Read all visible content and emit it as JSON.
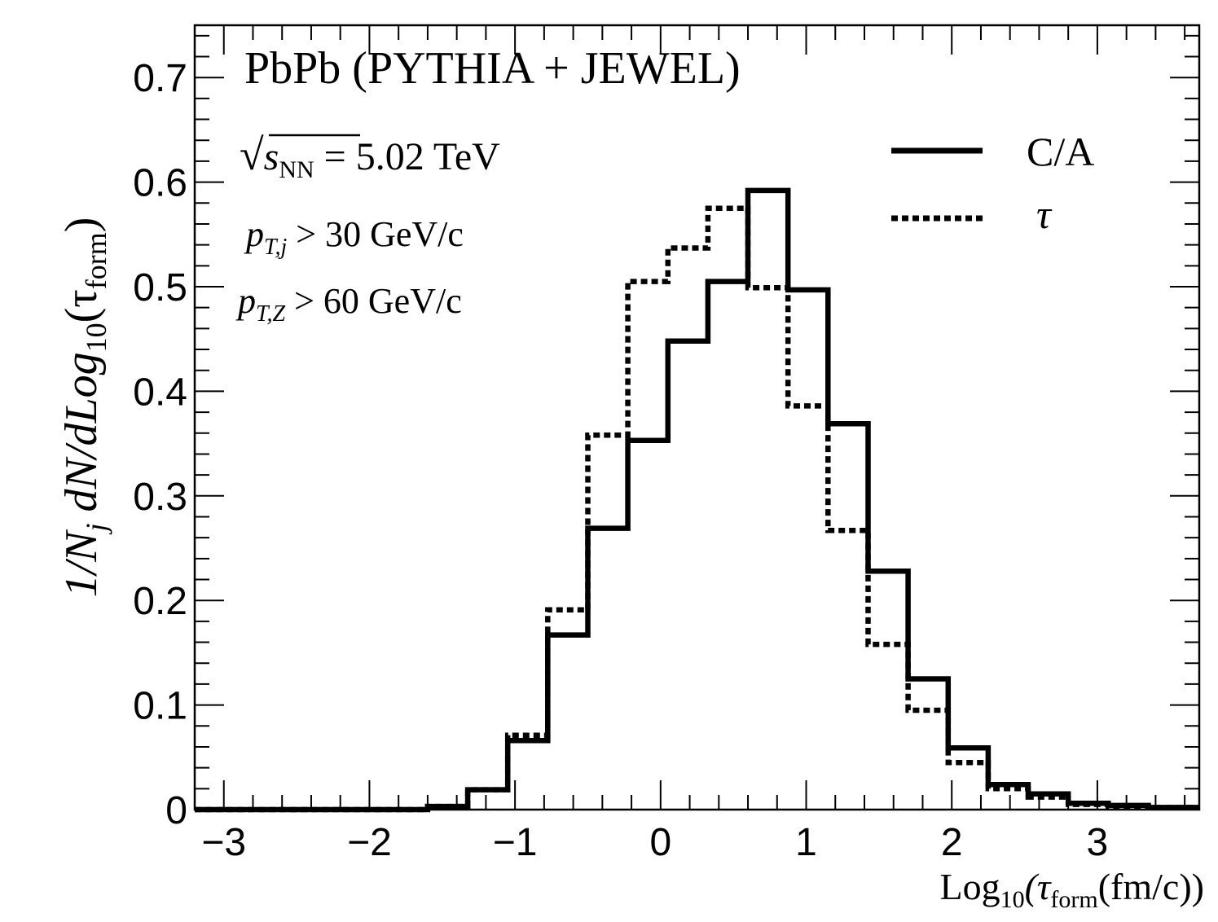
{
  "chart_data": {
    "type": "line",
    "subtype": "step-histogram",
    "title": "PbPb (PYTHIA + JEWEL)",
    "annotations": {
      "energy_prefix": "√",
      "energy_var": "s",
      "energy_sub": "NN",
      "energy_value": " = 5.02 TeV",
      "ptj_var": "p",
      "ptj_sub": "T,j",
      "ptj_value": " > 30 GeV/c",
      "ptz_var": "p",
      "ptz_sub": "T,Z",
      "ptz_value": " > 60 GeV/c"
    },
    "ylabel": {
      "a": "1/N",
      "a_sub": "j",
      "b": " dN/dLog",
      "b_sub": "10",
      "c": "(τ",
      "c_sub": "form",
      "d": ")"
    },
    "xlabel": {
      "a": "Log",
      "a_sub": "10",
      "b": "(τ",
      "b_sub": "form",
      "c": "(fm/c))"
    },
    "xlim": [
      -3.2,
      3.7
    ],
    "ylim": [
      0,
      0.75
    ],
    "x_ticks": [
      -3,
      -2,
      -1,
      0,
      1,
      2,
      3
    ],
    "x_tick_labels": [
      "−3",
      "−2",
      "−1",
      "0",
      "1",
      "2",
      "3"
    ],
    "y_ticks": [
      0,
      0.1,
      0.2,
      0.3,
      0.4,
      0.5,
      0.6,
      0.7
    ],
    "y_tick_labels": [
      "0",
      "0.1",
      "0.2",
      "0.3",
      "0.4",
      "0.5",
      "0.6",
      "0.7"
    ],
    "bin_edges": [
      -3.2,
      -2.975,
      -2.7,
      -2.425,
      -2.15,
      -1.875,
      -1.6,
      -1.325,
      -1.05,
      -0.775,
      -0.5,
      -0.225,
      0.05,
      0.325,
      0.6,
      0.875,
      1.15,
      1.425,
      1.7,
      1.975,
      2.25,
      2.525,
      2.8,
      3.075,
      3.35,
      3.7
    ],
    "legend": {
      "position": "top-right",
      "entries": [
        {
          "label": "C/A",
          "style": "solid"
        },
        {
          "label": "τ",
          "style": "dotted"
        }
      ]
    },
    "series": [
      {
        "name": "C/A",
        "style": "solid",
        "values": [
          0.0,
          0.0,
          0.0,
          0.0,
          0.0,
          0.0,
          0.003,
          0.019,
          0.066,
          0.167,
          0.269,
          0.353,
          0.448,
          0.505,
          0.592,
          0.497,
          0.369,
          0.228,
          0.125,
          0.059,
          0.024,
          0.015,
          0.006,
          0.004,
          0.002
        ]
      },
      {
        "name": "τ",
        "style": "dotted",
        "values": [
          0.0,
          0.0,
          0.0,
          0.0,
          0.0,
          0.0,
          0.003,
          0.019,
          0.071,
          0.191,
          0.358,
          0.505,
          0.537,
          0.575,
          0.499,
          0.386,
          0.267,
          0.158,
          0.095,
          0.045,
          0.02,
          0.012,
          0.005,
          0.003,
          0.002
        ]
      }
    ]
  }
}
